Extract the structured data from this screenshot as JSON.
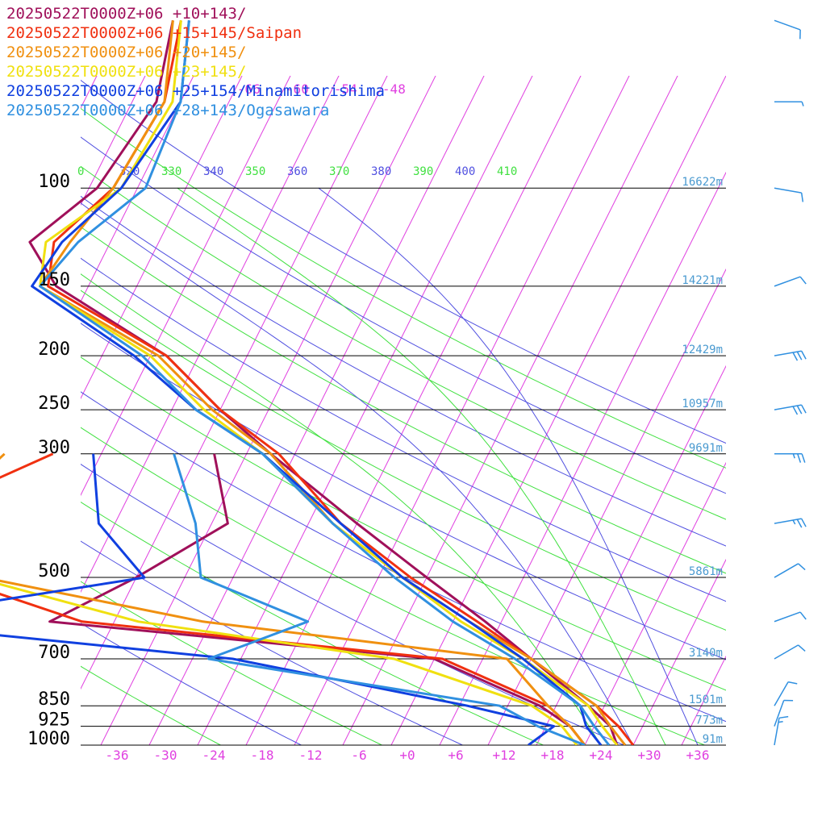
{
  "chart_data": {
    "type": "line",
    "subtype": "skew-t log-p sounding",
    "title": "",
    "xlabel": "",
    "ylabel": "",
    "pressure_levels": [
      100,
      150,
      200,
      250,
      300,
      500,
      700,
      850,
      925,
      1000
    ],
    "pressure_labels": [
      "100",
      "150",
      "200",
      "250",
      "300",
      "500",
      "700",
      "850",
      "925",
      "1000"
    ],
    "height_labels": [
      {
        "p": 100,
        "text": "16622m"
      },
      {
        "p": 150,
        "text": "14221m"
      },
      {
        "p": 200,
        "text": "12429m"
      },
      {
        "p": 250,
        "text": "10957m"
      },
      {
        "p": 300,
        "text": "9691m"
      },
      {
        "p": 500,
        "text": "5861m"
      },
      {
        "p": 700,
        "text": "3140m"
      },
      {
        "p": 850,
        "text": "1501m"
      },
      {
        "p": 925,
        "text": "773m"
      },
      {
        "p": 1000,
        "text": "91m"
      }
    ],
    "temperature_ticks": [
      -36,
      -30,
      -24,
      -18,
      -12,
      -6,
      0,
      6,
      12,
      18,
      24,
      30,
      36
    ],
    "temperature_tick_labels": [
      "-36",
      "-30",
      "-24",
      "-18",
      "-12",
      "-6",
      "+0",
      "+6",
      "+12",
      "+18",
      "+24",
      "+30",
      "+36"
    ],
    "top_temperature_labels": [
      "-66",
      "-60",
      "-54",
      "-48"
    ],
    "top_temperature_values": [
      -66,
      -60,
      -54,
      -48
    ],
    "theta_labels": [
      {
        "k": 310,
        "text": "0",
        "color": "#40e040"
      },
      {
        "k": 320,
        "text": "320",
        "color": "#5050e0"
      },
      {
        "k": 330,
        "text": "330",
        "color": "#40e040"
      },
      {
        "k": 340,
        "text": "340",
        "color": "#5050e0"
      },
      {
        "k": 350,
        "text": "350",
        "color": "#40e040"
      },
      {
        "k": 360,
        "text": "360",
        "color": "#5050e0"
      },
      {
        "k": 370,
        "text": "370",
        "color": "#40e040"
      },
      {
        "k": 380,
        "text": "380",
        "color": "#5050e0"
      },
      {
        "k": 390,
        "text": "390",
        "color": "#40e040"
      },
      {
        "k": 400,
        "text": "400",
        "color": "#5050e0"
      },
      {
        "k": 410,
        "text": "410",
        "color": "#40e040"
      }
    ],
    "grid": true,
    "series": [
      {
        "name": "20250522T0000Z+06 +10+143/",
        "color": "#a0105a",
        "temperature": [
          [
            50,
            -74
          ],
          [
            70,
            -71
          ],
          [
            100,
            -73
          ],
          [
            125,
            -78
          ],
          [
            150,
            -72
          ],
          [
            200,
            -54
          ],
          [
            250,
            -44
          ],
          [
            300,
            -35
          ],
          [
            400,
            -20
          ],
          [
            500,
            -8
          ],
          [
            600,
            2
          ],
          [
            700,
            10
          ],
          [
            850,
            20
          ],
          [
            925,
            24
          ],
          [
            1000,
            26
          ]
        ],
        "dewpoint": [
          [
            300,
            -42
          ],
          [
            400,
            -36
          ],
          [
            500,
            -44
          ],
          [
            600,
            -52
          ],
          [
            700,
            -2
          ],
          [
            850,
            14
          ],
          [
            925,
            19
          ],
          [
            1000,
            22
          ]
        ]
      },
      {
        "name": "20250522T0000Z+06 +15+145/Saipan",
        "color": "#f03010",
        "temperature": [
          [
            50,
            -73
          ],
          [
            70,
            -70
          ],
          [
            100,
            -71
          ],
          [
            125,
            -75
          ],
          [
            150,
            -73
          ],
          [
            200,
            -54
          ],
          [
            250,
            -44
          ],
          [
            300,
            -34
          ],
          [
            400,
            -22
          ],
          [
            500,
            -10
          ],
          [
            600,
            1
          ],
          [
            700,
            10
          ],
          [
            850,
            21
          ],
          [
            925,
            25
          ],
          [
            1000,
            28
          ]
        ],
        "dewpoint": [
          [
            300,
            -62
          ],
          [
            400,
            -77
          ],
          [
            500,
            -67
          ],
          [
            600,
            -48
          ],
          [
            700,
            -1
          ],
          [
            850,
            15
          ],
          [
            925,
            19
          ],
          [
            1000,
            22
          ]
        ]
      },
      {
        "name": "20250522T0000Z+06 +20+145/",
        "color": "#f09010",
        "temperature": [
          [
            50,
            -74
          ],
          [
            70,
            -70
          ],
          [
            100,
            -71
          ],
          [
            125,
            -73
          ],
          [
            150,
            -74
          ],
          [
            200,
            -55
          ],
          [
            250,
            -45
          ],
          [
            300,
            -35
          ],
          [
            400,
            -23
          ],
          [
            500,
            -11
          ],
          [
            600,
            0
          ],
          [
            700,
            10
          ],
          [
            850,
            21
          ],
          [
            925,
            24
          ],
          [
            1000,
            27
          ]
        ],
        "dewpoint": [
          [
            300,
            -68
          ],
          [
            400,
            -73
          ],
          [
            500,
            -63
          ],
          [
            600,
            -33
          ],
          [
            700,
            7
          ],
          [
            850,
            15
          ],
          [
            925,
            19
          ],
          [
            1000,
            22
          ]
        ]
      },
      {
        "name": "20250522T0000Z+06 +23+145/",
        "color": "#f0e010",
        "temperature": [
          [
            50,
            -73
          ],
          [
            70,
            -69
          ],
          [
            100,
            -70
          ],
          [
            125,
            -76
          ],
          [
            150,
            -74
          ],
          [
            200,
            -56
          ],
          [
            250,
            -46
          ],
          [
            300,
            -36
          ],
          [
            400,
            -23
          ],
          [
            500,
            -11
          ],
          [
            600,
            -1
          ],
          [
            700,
            9
          ],
          [
            850,
            20
          ],
          [
            925,
            23
          ],
          [
            1000,
            26
          ]
        ],
        "dewpoint": [
          [
            300,
            -86
          ],
          [
            400,
            -90
          ],
          [
            500,
            -64
          ],
          [
            600,
            -41
          ],
          [
            700,
            -7
          ],
          [
            850,
            13
          ],
          [
            925,
            18
          ],
          [
            1000,
            21
          ]
        ]
      },
      {
        "name": "20250522T0000Z+06 +25+154/Minamitorishima",
        "color": "#1040e0",
        "temperature": [
          [
            50,
            -72
          ],
          [
            70,
            -68
          ],
          [
            100,
            -70
          ],
          [
            125,
            -74
          ],
          [
            150,
            -75
          ],
          [
            200,
            -58
          ],
          [
            250,
            -47
          ],
          [
            300,
            -36
          ],
          [
            400,
            -22
          ],
          [
            500,
            -11
          ],
          [
            600,
            0
          ],
          [
            700,
            9
          ],
          [
            850,
            19
          ],
          [
            925,
            21
          ],
          [
            1000,
            24
          ]
        ],
        "dewpoint": [
          [
            300,
            -57
          ],
          [
            400,
            -52
          ],
          [
            500,
            -43
          ],
          [
            600,
            -75
          ],
          [
            700,
            -27
          ],
          [
            850,
            5
          ],
          [
            925,
            17
          ],
          [
            1000,
            15
          ]
        ]
      },
      {
        "name": "20250522T0000Z+06 +28+143/Ogasawara",
        "color": "#3090e0",
        "temperature": [
          [
            50,
            -72
          ],
          [
            70,
            -68
          ],
          [
            100,
            -67
          ],
          [
            125,
            -72
          ],
          [
            150,
            -74
          ],
          [
            200,
            -57
          ],
          [
            250,
            -47
          ],
          [
            300,
            -36
          ],
          [
            400,
            -23
          ],
          [
            500,
            -12
          ],
          [
            600,
            -2
          ],
          [
            700,
            8
          ],
          [
            850,
            19
          ],
          [
            925,
            22
          ],
          [
            1000,
            25
          ]
        ],
        "dewpoint": [
          [
            300,
            -47
          ],
          [
            400,
            -40
          ],
          [
            500,
            -36
          ],
          [
            600,
            -20
          ],
          [
            700,
            -30
          ],
          [
            850,
            9
          ],
          [
            925,
            15
          ],
          [
            1000,
            22
          ]
        ]
      }
    ],
    "wind_barbs": {
      "levels": [
        50,
        70,
        100,
        150,
        200,
        250,
        300,
        400,
        500,
        600,
        700,
        850,
        925,
        1000
      ],
      "speed_kt": [
        10,
        5,
        10,
        10,
        30,
        30,
        25,
        25,
        10,
        10,
        10,
        10,
        10,
        15
      ],
      "direction_deg": [
        110,
        90,
        100,
        70,
        80,
        80,
        90,
        80,
        60,
        70,
        60,
        30,
        20,
        10
      ]
    }
  }
}
